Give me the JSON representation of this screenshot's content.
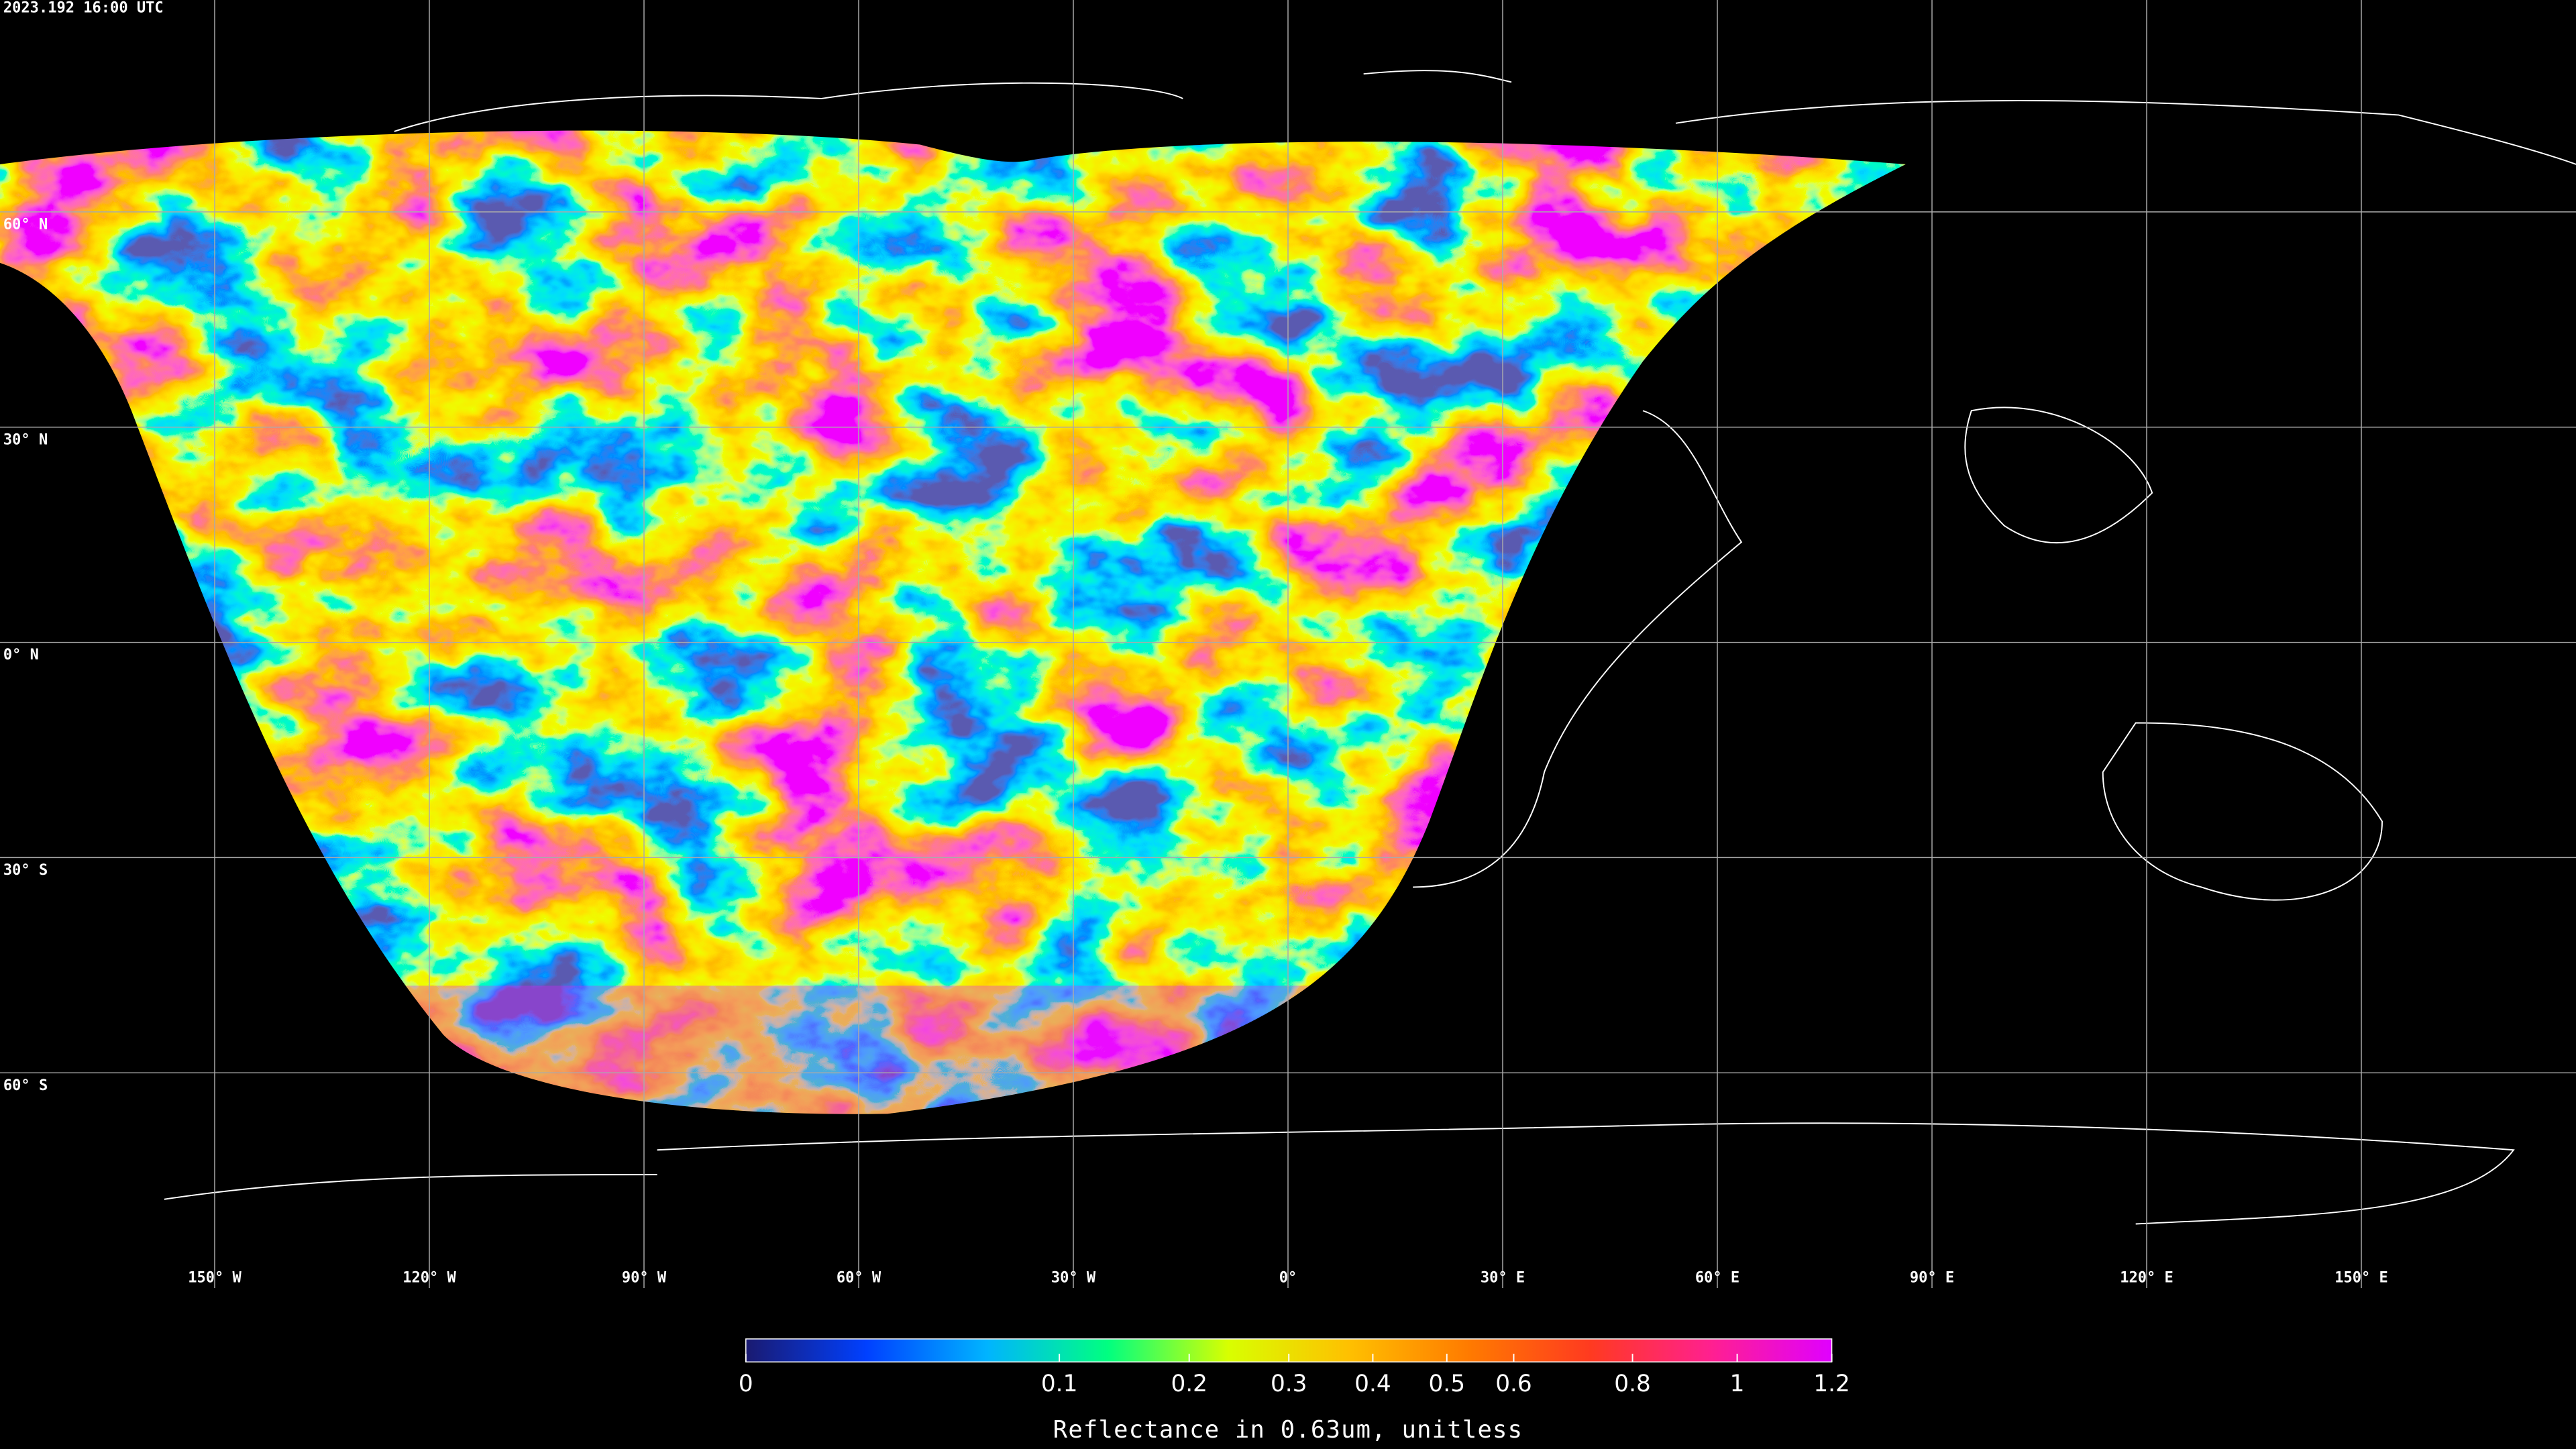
{
  "header": {
    "timestamp": "2023.192 16:00 UTC"
  },
  "map": {
    "grid": true,
    "latitudes": [
      {
        "value": 60,
        "label": "60° N"
      },
      {
        "value": 30,
        "label": "30° N"
      },
      {
        "value": 0,
        "label": "0° N"
      },
      {
        "value": -30,
        "label": "30° S"
      },
      {
        "value": -60,
        "label": "60° S"
      }
    ],
    "longitudes": [
      {
        "value": -150,
        "label": "150° W"
      },
      {
        "value": -120,
        "label": "120° W"
      },
      {
        "value": -90,
        "label": "90° W"
      },
      {
        "value": -60,
        "label": "60° W"
      },
      {
        "value": -30,
        "label": "30° W"
      },
      {
        "value": 0,
        "label": "0°"
      },
      {
        "value": 30,
        "label": "30° E"
      },
      {
        "value": 60,
        "label": "60° E"
      },
      {
        "value": 90,
        "label": "90° E"
      },
      {
        "value": 120,
        "label": "120° E"
      },
      {
        "value": 150,
        "label": "150° E"
      }
    ]
  },
  "colorbar": {
    "range": [
      0,
      1.2
    ],
    "scale": "sqrt",
    "ticks": [
      0,
      0.1,
      0.2,
      0.3,
      0.4,
      0.5,
      0.6,
      0.8,
      1,
      1.2
    ],
    "label": "Reflectance in 0.63um, unitless",
    "colors": [
      "#1a1a70",
      "#0040ff",
      "#00b4ff",
      "#00ff80",
      "#d8ff00",
      "#ffc000",
      "#ff7a00",
      "#ff3a20",
      "#ff2090",
      "#e000ff"
    ]
  }
}
